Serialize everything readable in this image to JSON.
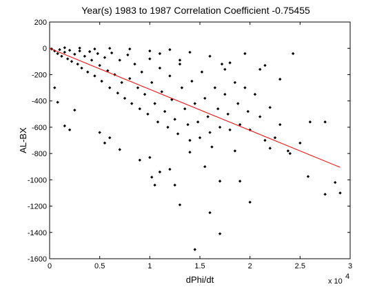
{
  "chart_data": {
    "type": "scatter",
    "title": "Year(s) 1983 to 1987 Correlation Coefficient -0.75455",
    "xlabel": "dPhi/dt",
    "ylabel": "AL-BX",
    "x_scale_label": "x 10",
    "x_scale_exponent": "4",
    "xlim": [
      0,
      3
    ],
    "ylim": [
      -1600,
      200
    ],
    "x_ticks": [
      "0",
      "0.5",
      "1",
      "1.5",
      "2",
      "2.5",
      "3"
    ],
    "y_ticks": [
      "200",
      "0",
      "-200",
      "-400",
      "-600",
      "-800",
      "-1000",
      "-1200",
      "-1400",
      "-1600"
    ],
    "grid": false,
    "colors": {
      "points": "#000000",
      "fit_line": "#ff0000"
    },
    "fit_line": {
      "x": [
        0,
        2.9
      ],
      "y": [
        0,
        -905
      ]
    },
    "series": [
      {
        "marker": "diamond",
        "points": [
          [
            0.02,
            -5
          ],
          [
            0.05,
            -20
          ],
          [
            0.08,
            -40
          ],
          [
            0.1,
            -10
          ],
          [
            0.12,
            -60
          ],
          [
            0.15,
            -30
          ],
          [
            0.18,
            -80
          ],
          [
            0.2,
            -15
          ],
          [
            0.22,
            -100
          ],
          [
            0.25,
            -45
          ],
          [
            0.28,
            -120
          ],
          [
            0.3,
            -20
          ],
          [
            0.32,
            -150
          ],
          [
            0.35,
            -60
          ],
          [
            0.38,
            -180
          ],
          [
            0.4,
            -25
          ],
          [
            0.42,
            -90
          ],
          [
            0.45,
            -210
          ],
          [
            0.48,
            -40
          ],
          [
            0.5,
            -130
          ],
          [
            0.52,
            -250
          ],
          [
            0.55,
            -70
          ],
          [
            0.58,
            -170
          ],
          [
            0.6,
            -300
          ],
          [
            0.62,
            -35
          ],
          [
            0.65,
            -200
          ],
          [
            0.68,
            -340
          ],
          [
            0.7,
            -90
          ],
          [
            0.72,
            -260
          ],
          [
            0.75,
            -380
          ],
          [
            0.78,
            -50
          ],
          [
            0.8,
            -230
          ],
          [
            0.82,
            -420
          ],
          [
            0.85,
            -120
          ],
          [
            0.88,
            -300
          ],
          [
            0.9,
            -460
          ],
          [
            0.92,
            -180
          ],
          [
            0.95,
            -350
          ],
          [
            0.98,
            -500
          ],
          [
            1.0,
            -80
          ],
          [
            1.02,
            -260
          ],
          [
            1.05,
            -420
          ],
          [
            1.08,
            -560
          ],
          [
            1.1,
            -150
          ],
          [
            1.12,
            -330
          ],
          [
            1.15,
            -480
          ],
          [
            1.18,
            -600
          ],
          [
            1.2,
            -210
          ],
          [
            1.22,
            -390
          ],
          [
            1.25,
            -540
          ],
          [
            1.28,
            -650
          ],
          [
            1.3,
            -120
          ],
          [
            1.32,
            -300
          ],
          [
            1.35,
            -460
          ],
          [
            1.38,
            -580
          ],
          [
            1.4,
            -700
          ],
          [
            1.42,
            -250
          ],
          [
            1.45,
            -420
          ],
          [
            1.48,
            -560
          ],
          [
            1.5,
            -680
          ],
          [
            1.52,
            -180
          ],
          [
            1.55,
            -380
          ],
          [
            1.58,
            -520
          ],
          [
            1.6,
            -640
          ],
          [
            1.62,
            -750
          ],
          [
            1.65,
            -300
          ],
          [
            1.68,
            -460
          ],
          [
            1.7,
            -600
          ],
          [
            1.72,
            -120
          ],
          [
            1.75,
            -350
          ],
          [
            1.78,
            -500
          ],
          [
            1.8,
            -620
          ],
          [
            1.85,
            -260
          ],
          [
            1.88,
            -420
          ],
          [
            1.9,
            -580
          ],
          [
            1.95,
            -300
          ],
          [
            1.98,
            -480
          ],
          [
            2.0,
            -620
          ],
          [
            2.05,
            -350
          ],
          [
            2.1,
            -520
          ],
          [
            2.15,
            -700
          ],
          [
            2.2,
            -450
          ],
          [
            2.3,
            -580
          ],
          [
            2.4,
            -800
          ],
          [
            2.5,
            -720
          ],
          [
            2.6,
            -560
          ],
          [
            2.75,
            -560
          ],
          [
            2.85,
            -1020
          ],
          [
            2.9,
            -1100
          ],
          [
            2.75,
            -1110
          ],
          [
            2.58,
            -975
          ],
          [
            2.0,
            -1170
          ],
          [
            1.7,
            -1410
          ],
          [
            1.6,
            -1250
          ],
          [
            1.45,
            -1530
          ],
          [
            1.3,
            -1190
          ],
          [
            1.25,
            -1040
          ],
          [
            1.02,
            -980
          ],
          [
            1.05,
            -1040
          ],
          [
            1.7,
            -1010
          ],
          [
            1.9,
            -1010
          ],
          [
            1.1,
            -940
          ],
          [
            1.2,
            -920
          ],
          [
            0.9,
            -850
          ],
          [
            0.6,
            -680
          ],
          [
            0.7,
            -770
          ],
          [
            0.5,
            -640
          ],
          [
            0.55,
            -720
          ],
          [
            1.0,
            -830
          ],
          [
            1.4,
            -790
          ],
          [
            1.55,
            -900
          ],
          [
            1.85,
            -780
          ],
          [
            2.2,
            -760
          ],
          [
            2.38,
            -780
          ],
          [
            2.25,
            -680
          ],
          [
            2.43,
            -40
          ],
          [
            2.1,
            -160
          ],
          [
            1.95,
            -40
          ],
          [
            1.6,
            -60
          ],
          [
            1.4,
            -30
          ],
          [
            1.2,
            -10
          ],
          [
            1.0,
            -20
          ],
          [
            0.8,
            -5
          ],
          [
            0.6,
            0
          ],
          [
            0.3,
            2
          ],
          [
            0.45,
            -5
          ],
          [
            0.15,
            5
          ],
          [
            1.1,
            -40
          ],
          [
            1.3,
            -90
          ],
          [
            2.3,
            -235
          ],
          [
            2.15,
            -130
          ],
          [
            1.8,
            -110
          ],
          [
            1.75,
            -160
          ],
          [
            0.05,
            -300
          ],
          [
            0.08,
            -410
          ],
          [
            0.15,
            -590
          ],
          [
            0.2,
            -620
          ],
          [
            0.25,
            -470
          ]
        ]
      }
    ]
  }
}
